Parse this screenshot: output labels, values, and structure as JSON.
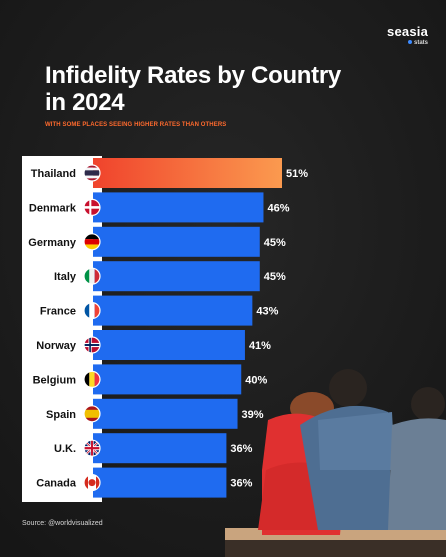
{
  "brand": {
    "name": "seasia",
    "sub": "stats"
  },
  "title": "Infidelity Rates by Country in 2024",
  "subtitle": "WITH SOME PLACES SEEING HIGHER RATES THAN OTHERS",
  "source": "Source: @worldvisualized",
  "colors": {
    "highlight_start": "#f0432c",
    "highlight_end": "#fb9a4f",
    "bar": "#1f6bf0",
    "background": "#1e1e1e"
  },
  "chart_data": {
    "type": "bar",
    "orientation": "horizontal",
    "categories": [
      "Thailand",
      "Denmark",
      "Germany",
      "Italy",
      "France",
      "Norway",
      "Belgium",
      "Spain",
      "U.K.",
      "Canada"
    ],
    "values": [
      51,
      46,
      45,
      45,
      43,
      41,
      40,
      39,
      36,
      36
    ],
    "value_labels": [
      "51%",
      "46%",
      "45%",
      "45%",
      "43%",
      "41%",
      "40%",
      "39%",
      "36%",
      "36%"
    ],
    "flags": [
      "thailand-flag-icon",
      "denmark-flag-icon",
      "germany-flag-icon",
      "italy-flag-icon",
      "france-flag-icon",
      "norway-flag-icon",
      "belgium-flag-icon",
      "spain-flag-icon",
      "uk-flag-icon",
      "canada-flag-icon"
    ],
    "highlight_index": 0
  }
}
